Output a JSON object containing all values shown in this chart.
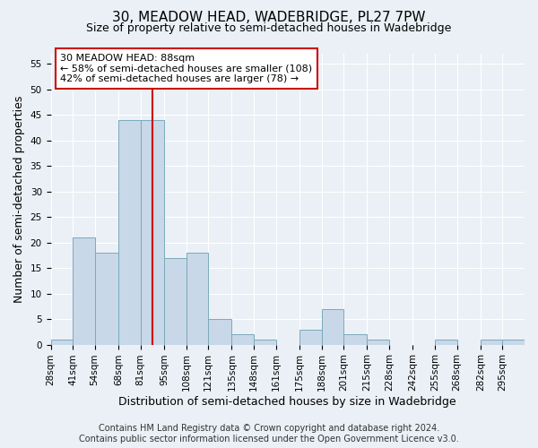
{
  "title": "30, MEADOW HEAD, WADEBRIDGE, PL27 7PW",
  "subtitle": "Size of property relative to semi-detached houses in Wadebridge",
  "xlabel": "Distribution of semi-detached houses by size in Wadebridge",
  "ylabel": "Number of semi-detached properties",
  "bin_labels": [
    "28sqm",
    "41sqm",
    "54sqm",
    "68sqm",
    "81sqm",
    "95sqm",
    "108sqm",
    "121sqm",
    "135sqm",
    "148sqm",
    "161sqm",
    "175sqm",
    "188sqm",
    "201sqm",
    "215sqm",
    "228sqm",
    "242sqm",
    "255sqm",
    "268sqm",
    "282sqm",
    "295sqm"
  ],
  "bin_edges": [
    28,
    41,
    54,
    68,
    81,
    95,
    108,
    121,
    135,
    148,
    161,
    175,
    188,
    201,
    215,
    228,
    242,
    255,
    268,
    282,
    295
  ],
  "bar_heights": [
    1,
    21,
    18,
    44,
    44,
    17,
    18,
    5,
    2,
    1,
    0,
    3,
    7,
    2,
    1,
    0,
    0,
    1,
    0,
    1,
    1
  ],
  "bar_color": "#c8d8e8",
  "bar_edge_color": "#7aaabb",
  "ylim": [
    0,
    57
  ],
  "yticks": [
    0,
    5,
    10,
    15,
    20,
    25,
    30,
    35,
    40,
    45,
    50,
    55
  ],
  "property_value": 88,
  "annotation_title": "30 MEADOW HEAD: 88sqm",
  "annotation_line1": "← 58% of semi-detached houses are smaller (108)",
  "annotation_line2": "42% of semi-detached houses are larger (78) →",
  "annotation_box_facecolor": "#ffffff",
  "annotation_box_edgecolor": "#cc0000",
  "vline_color": "#cc0000",
  "footer_line1": "Contains HM Land Registry data © Crown copyright and database right 2024.",
  "footer_line2": "Contains public sector information licensed under the Open Government Licence v3.0.",
  "background_color": "#eaf0f6",
  "grid_color": "#ffffff",
  "title_fontsize": 11,
  "subtitle_fontsize": 9,
  "axis_label_fontsize": 9,
  "tick_fontsize": 7.5,
  "annotation_fontsize": 8,
  "footer_fontsize": 7
}
